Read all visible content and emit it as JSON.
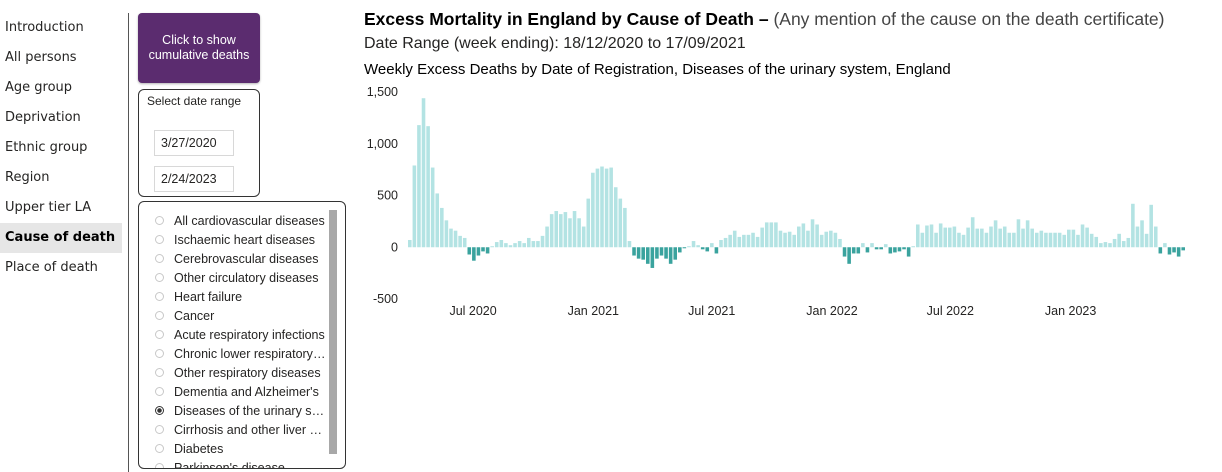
{
  "nav": {
    "items": [
      {
        "label": "Introduction",
        "active": false
      },
      {
        "label": "All persons",
        "active": false
      },
      {
        "label": "Age group",
        "active": false
      },
      {
        "label": "Deprivation",
        "active": false
      },
      {
        "label": "Ethnic group",
        "active": false
      },
      {
        "label": "Region",
        "active": false
      },
      {
        "label": "Upper tier LA",
        "active": false
      },
      {
        "label": "Cause of death",
        "active": true
      },
      {
        "label": "Place of death",
        "active": false
      }
    ]
  },
  "controls": {
    "cumulative_button": "Click to show cumulative deaths",
    "date_range_title": "Select date range",
    "date_start": "3/27/2020",
    "date_end": "2/24/2023",
    "button_color": "#5b2c6f"
  },
  "causes": [
    {
      "label": "All cardiovascular diseases",
      "selected": false
    },
    {
      "label": "Ischaemic heart diseases",
      "selected": false
    },
    {
      "label": "Cerebrovascular diseases",
      "selected": false
    },
    {
      "label": "Other circulatory diseases",
      "selected": false
    },
    {
      "label": "Heart failure",
      "selected": false
    },
    {
      "label": "Cancer",
      "selected": false
    },
    {
      "label": "Acute respiratory infections",
      "selected": false
    },
    {
      "label": "Chronic lower respiratory diseases",
      "selected": false
    },
    {
      "label": "Other respiratory diseases",
      "selected": false
    },
    {
      "label": "Dementia and Alzheimer's",
      "selected": false
    },
    {
      "label": "Diseases of the urinary system",
      "selected": true
    },
    {
      "label": "Cirrhosis and other liver diseases",
      "selected": false
    },
    {
      "label": "Diabetes",
      "selected": false
    },
    {
      "label": "Parkinson's disease",
      "selected": false
    }
  ],
  "header": {
    "title_bold": "Excess Mortality in England by Cause of Death –",
    "title_sub": "(Any mention of the cause on the death certificate)",
    "date_range": "Date Range (week ending): 18/12/2020 to 17/09/2021"
  },
  "chart_data": {
    "type": "bar",
    "title": "Weekly Excess Deaths by Date of Registration, Diseases of the urinary system, England",
    "xlabel": "",
    "ylabel": "",
    "ylim": [
      -500,
      1500
    ],
    "y_ticks": [
      {
        "value": 1500,
        "label": "1,500"
      },
      {
        "value": 1000,
        "label": "1,000"
      },
      {
        "value": 500,
        "label": "500"
      },
      {
        "value": 0,
        "label": "0"
      },
      {
        "value": -500,
        "label": "-500"
      }
    ],
    "x_start": "2020-03-27",
    "x_end": "2023-02-24",
    "x_ticks": [
      {
        "date": "2020-07-01",
        "label": "Jul 2020"
      },
      {
        "date": "2021-01-01",
        "label": "Jan 2021"
      },
      {
        "date": "2021-07-01",
        "label": "Jul 2021"
      },
      {
        "date": "2022-01-01",
        "label": "Jan 2022"
      },
      {
        "date": "2022-07-01",
        "label": "Jul 2022"
      },
      {
        "date": "2023-01-01",
        "label": "Jan 2023"
      }
    ],
    "grid": false,
    "positive_color": "#b3e3e3",
    "negative_color": "#3aa39e",
    "week_interval_days": 7,
    "values": [
      70,
      790,
      1180,
      1440,
      1170,
      770,
      520,
      380,
      260,
      180,
      160,
      110,
      90,
      -70,
      -130,
      -80,
      -40,
      -60,
      10,
      50,
      70,
      40,
      20,
      40,
      60,
      40,
      90,
      60,
      60,
      110,
      200,
      320,
      350,
      320,
      340,
      280,
      350,
      280,
      200,
      470,
      720,
      760,
      780,
      760,
      770,
      580,
      470,
      380,
      60,
      -80,
      -110,
      -120,
      -160,
      -200,
      -110,
      -80,
      -110,
      -160,
      -120,
      -50,
      -10,
      10,
      60,
      20,
      -20,
      -40,
      40,
      -60,
      70,
      90,
      120,
      160,
      100,
      120,
      120,
      140,
      100,
      190,
      240,
      240,
      240,
      160,
      140,
      150,
      120,
      200,
      230,
      160,
      270,
      220,
      120,
      150,
      160,
      140,
      80,
      -90,
      -160,
      -60,
      -60,
      40,
      -50,
      40,
      -20,
      -20,
      30,
      -60,
      -50,
      -40,
      -20,
      -90,
      10,
      220,
      140,
      210,
      220,
      140,
      230,
      190,
      190,
      200,
      140,
      120,
      190,
      290,
      180,
      180,
      140,
      200,
      260,
      180,
      200,
      140,
      140,
      270,
      180,
      260,
      180,
      140,
      160,
      140,
      140,
      140,
      140,
      120,
      170,
      170,
      120,
      220,
      190,
      130,
      100,
      40,
      50,
      40,
      80,
      130,
      60,
      90,
      420,
      200,
      260,
      130,
      410,
      200,
      -60,
      40,
      -70,
      -50,
      -90,
      -30
    ]
  }
}
